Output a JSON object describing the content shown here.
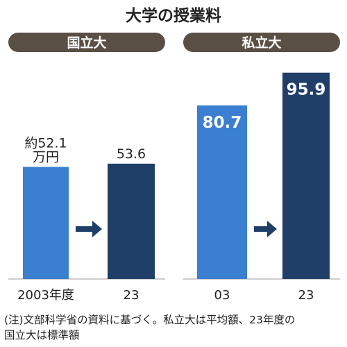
{
  "title": "大学の授業料",
  "colors": {
    "panel_header": "#5a4f45",
    "baseline_bar": "#3a7fd0",
    "current_bar": "#1f3f68",
    "arrow": "#1f3f68"
  },
  "chart_data": [
    {
      "type": "bar",
      "header": "国立大",
      "categories": [
        "2003年度",
        "23"
      ],
      "values": [
        52.1,
        53.6
      ],
      "value_labels": [
        "約52.1\n万円",
        "53.6"
      ],
      "ylim": [
        0,
        100
      ]
    },
    {
      "type": "bar",
      "header": "私立大",
      "categories": [
        "03",
        "23"
      ],
      "values": [
        80.7,
        95.9
      ],
      "value_labels": [
        "80.7",
        "95.9"
      ],
      "ylim": [
        0,
        100
      ]
    }
  ],
  "note_lines": [
    "(注)文部科学省の資料に基づく。私立大は平均額、23年度の",
    "国立大は標準額"
  ]
}
